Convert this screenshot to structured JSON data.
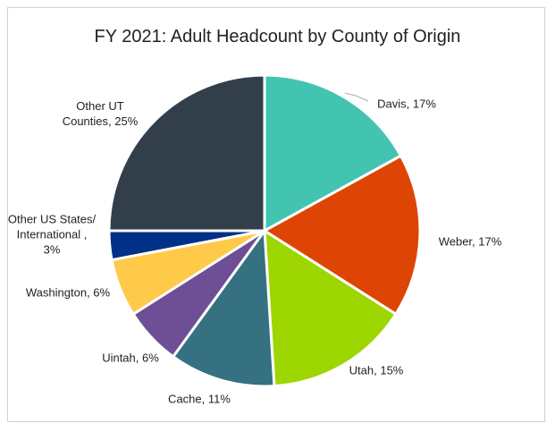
{
  "chart_data": {
    "type": "pie",
    "title": "FY 2021: Adult Headcount by County of Origin",
    "categories": [
      "Davis,",
      "Weber,",
      "Utah,",
      "Cache,",
      "Uintah,",
      "Washington,",
      "Other US States/ International ,",
      "Other UT Counties,"
    ],
    "values": [
      17,
      17,
      15,
      11,
      6,
      6,
      3,
      25
    ],
    "value_labels": [
      "17%",
      "17%",
      "15%",
      "11%",
      "6%",
      "6%",
      "3%",
      "25%"
    ],
    "colors": [
      "#43c4b0",
      "#de4504",
      "#9dd600",
      "#357180",
      "#6e4e94",
      "#ffc94a",
      "#003087",
      "#323f4b"
    ]
  }
}
